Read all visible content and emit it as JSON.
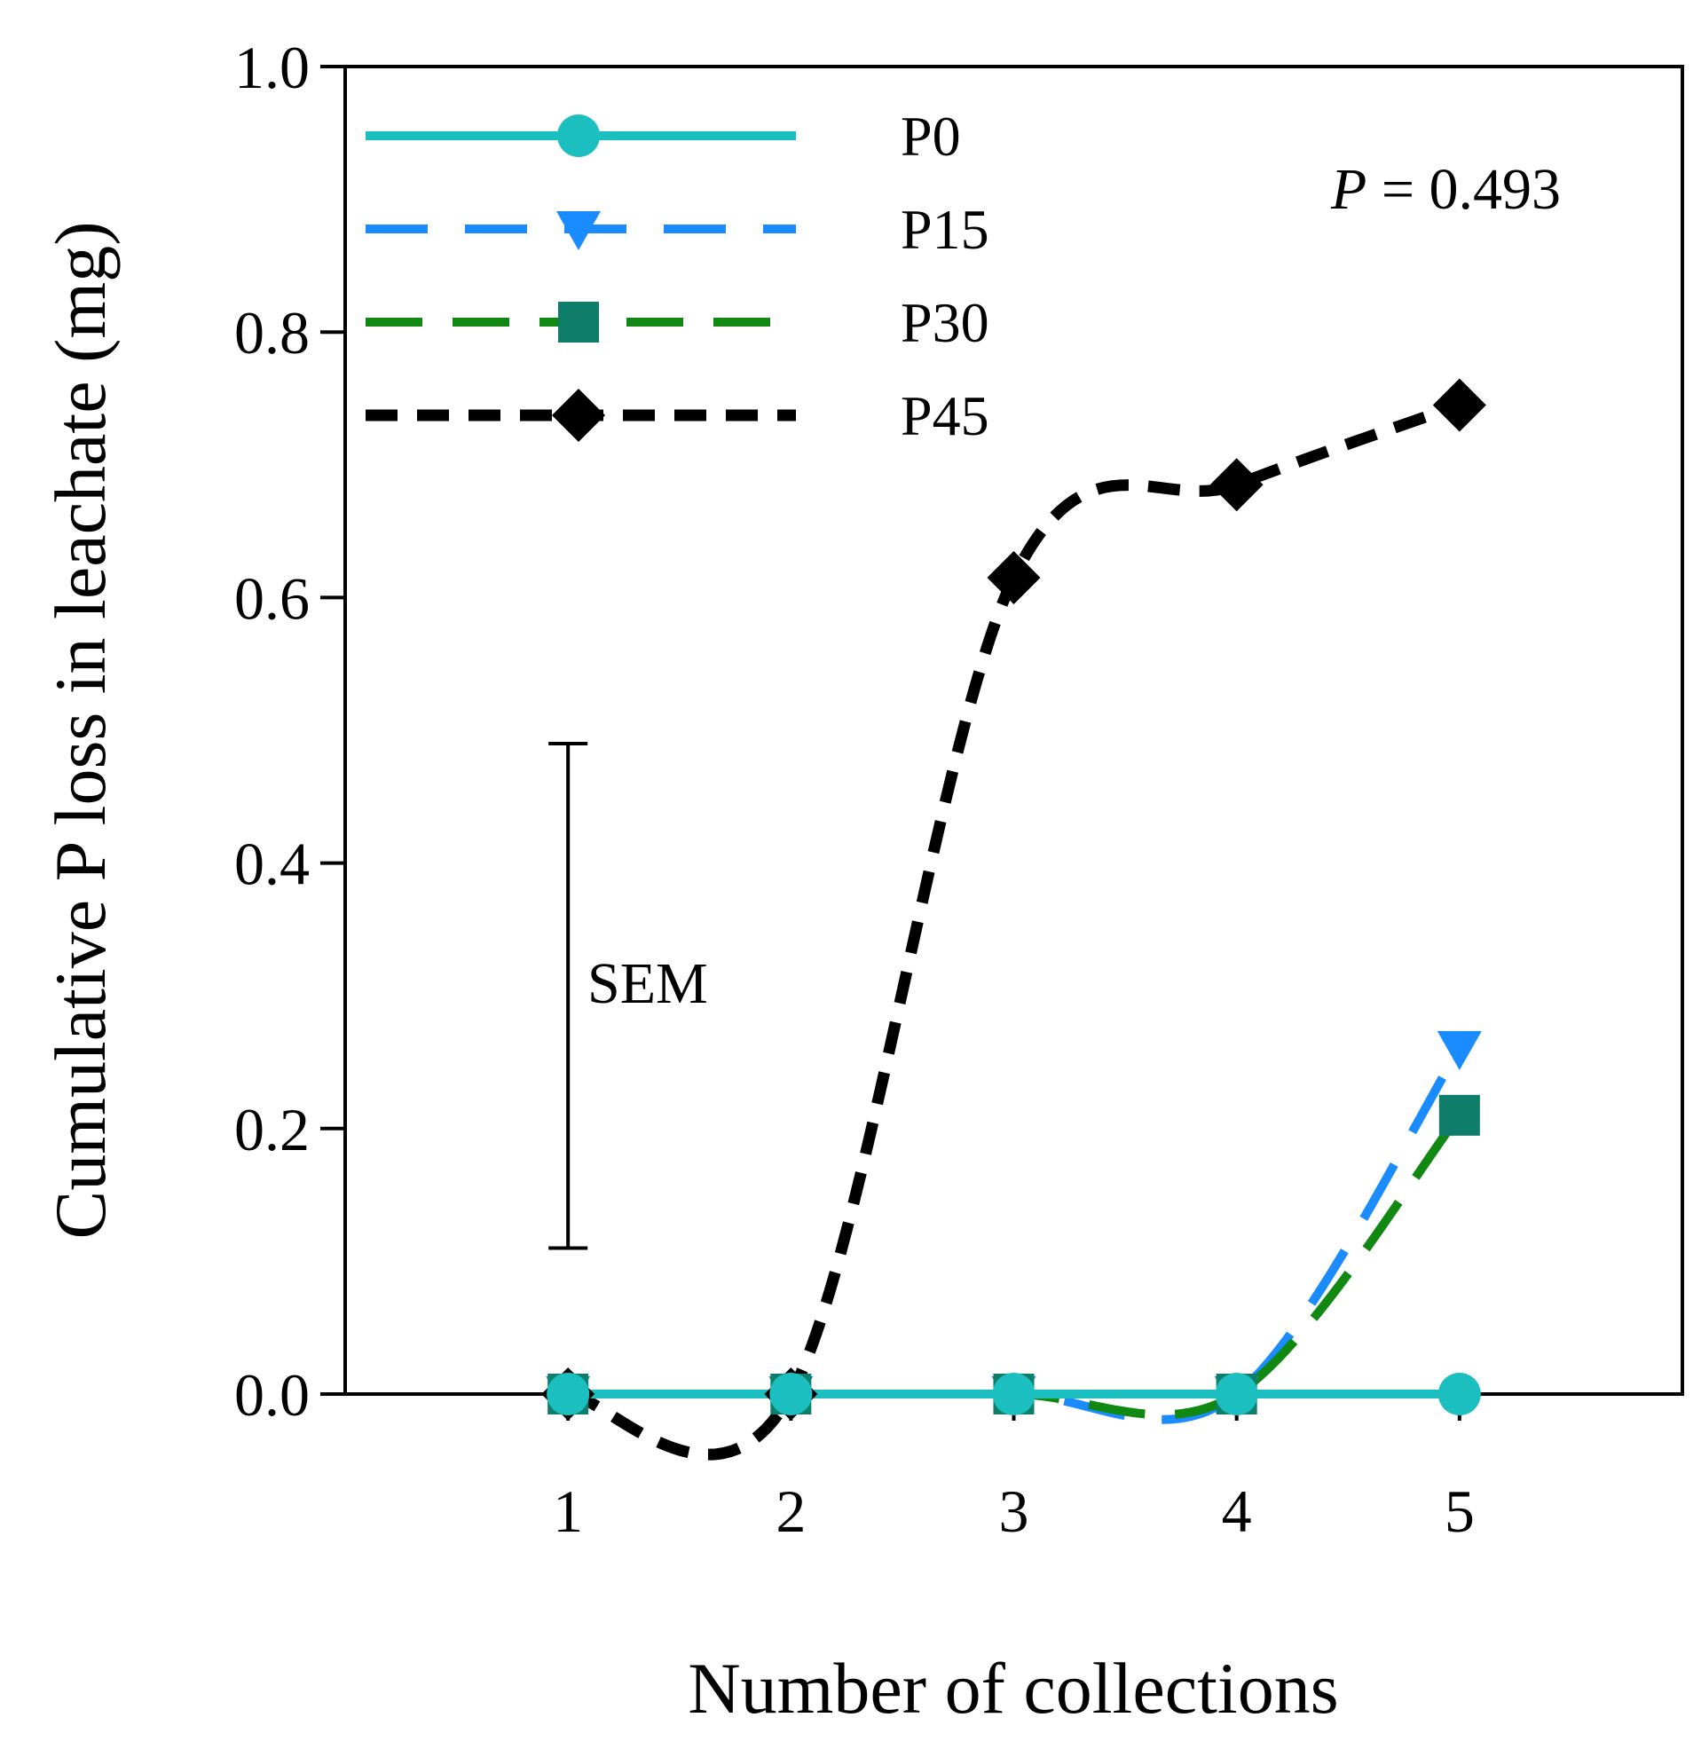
{
  "chart_data": {
    "type": "line",
    "title": "",
    "xlabel": "Number of collections",
    "ylabel": "Cumulative P loss in leachate (mg)",
    "x": [
      1,
      2,
      3,
      4,
      5
    ],
    "xlim": [
      0,
      6
    ],
    "ylim": [
      0,
      1.0
    ],
    "x_ticks": [
      "1",
      "2",
      "3",
      "4",
      "5"
    ],
    "y_ticks": [
      "0.0",
      "0.2",
      "0.4",
      "0.6",
      "0.8",
      "1.0"
    ],
    "grid": false,
    "legend_position": "top-left",
    "series": [
      {
        "name": "P0",
        "values": [
          0,
          0,
          0,
          0,
          0
        ],
        "color": "#1bbfbf",
        "marker": "circle"
      },
      {
        "name": "P15",
        "values": [
          0,
          0,
          0,
          0,
          0.26
        ],
        "color": "#1a8cff",
        "marker": "triangle-down"
      },
      {
        "name": "P30",
        "values": [
          0,
          0,
          0,
          0,
          0.21
        ],
        "color": "#118811",
        "marker": "square",
        "marker_color": "#0e7e6a"
      },
      {
        "name": "P45",
        "values": [
          0,
          0,
          0.615,
          0.685,
          0.745
        ],
        "color": "#000000",
        "marker": "diamond"
      }
    ],
    "annotations": {
      "p_value_label": "P",
      "p_value_text": " = 0.493",
      "sem_label": "SEM",
      "sem_range": [
        0.11,
        0.49
      ],
      "sem_x": 1
    }
  }
}
